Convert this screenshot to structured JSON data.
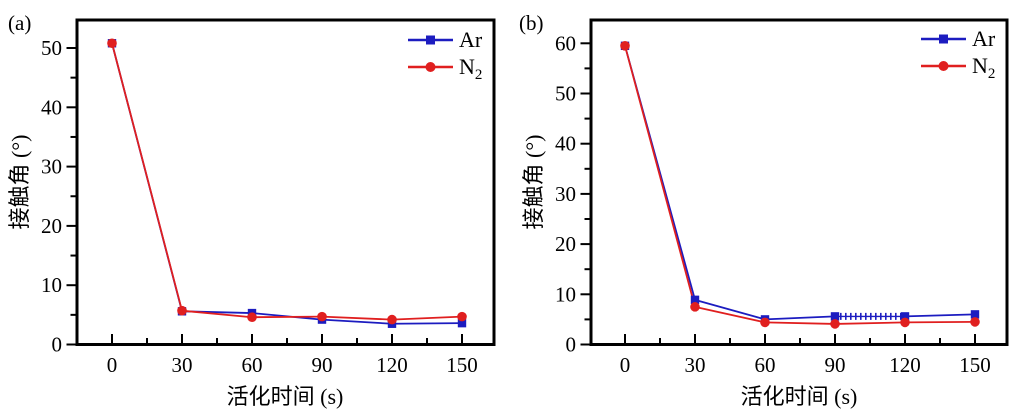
{
  "figure": {
    "background": "#ffffff",
    "colors": {
      "ar": "#1c1cc0",
      "n2": "#e01f1f",
      "axis": "#000000"
    }
  },
  "chart_data": [
    {
      "type": "line",
      "panel_tag": "(a)",
      "xlabel": "活化时间 (s)",
      "ylabel": "接触角 (°)",
      "x": [
        0,
        30,
        60,
        90,
        120,
        150
      ],
      "xticks": [
        0,
        30,
        60,
        90,
        120,
        150
      ],
      "yticks": [
        0,
        10,
        20,
        30,
        40,
        50
      ],
      "xlim": [
        -15,
        164
      ],
      "ylim": [
        0,
        54.7
      ],
      "grid": false,
      "legend": {
        "position": "top-right",
        "entries": [
          {
            "label": "Ar",
            "sub": ""
          },
          {
            "label": "N",
            "sub": "2"
          }
        ]
      },
      "series": [
        {
          "name": "Ar",
          "marker": "square",
          "color_key": "ar",
          "values": [
            50.8,
            5.6,
            5.3,
            4.2,
            3.5,
            3.6
          ]
        },
        {
          "name": "N₂",
          "marker": "circle",
          "color_key": "n2",
          "values": [
            50.8,
            5.7,
            4.6,
            4.7,
            4.2,
            4.7
          ]
        }
      ]
    },
    {
      "type": "line",
      "panel_tag": "(b)",
      "xlabel": "活化时间 (s)",
      "ylabel": "接触角 (°)",
      "x": [
        0,
        30,
        60,
        90,
        120,
        150
      ],
      "xticks": [
        0,
        30,
        60,
        90,
        120,
        150
      ],
      "yticks": [
        0,
        10,
        20,
        30,
        40,
        50,
        60
      ],
      "xlim": [
        -15,
        164
      ],
      "ylim": [
        0,
        64.6
      ],
      "grid": false,
      "legend": {
        "position": "top-right",
        "entries": [
          {
            "label": "Ar",
            "sub": ""
          },
          {
            "label": "N",
            "sub": "2"
          }
        ]
      },
      "series": [
        {
          "name": "Ar",
          "marker": "square",
          "color_key": "ar",
          "values": [
            59.5,
            8.9,
            5.0,
            5.6,
            5.6,
            6.0
          ],
          "dotted_segment": {
            "from_index": 3,
            "to_index": 4,
            "style": "railroad"
          }
        },
        {
          "name": "N₂",
          "marker": "circle",
          "color_key": "n2",
          "values": [
            59.5,
            7.5,
            4.4,
            4.1,
            4.4,
            4.5
          ]
        }
      ]
    }
  ]
}
